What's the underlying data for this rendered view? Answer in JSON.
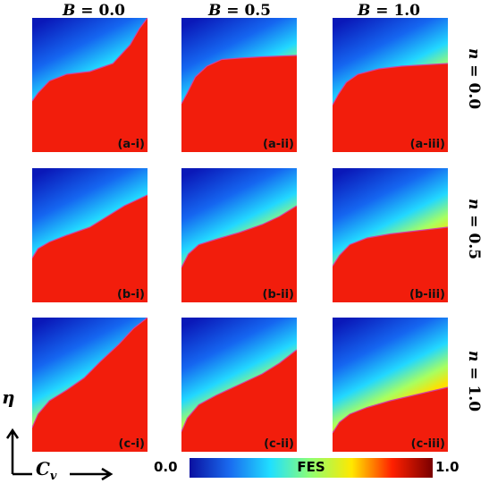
{
  "columns": [
    {
      "var": "B",
      "value": "0.0"
    },
    {
      "var": "B",
      "value": "0.5"
    },
    {
      "var": "B",
      "value": "1.0"
    }
  ],
  "rows": [
    {
      "var": "n",
      "value": "0.0"
    },
    {
      "var": "n",
      "value": "0.5"
    },
    {
      "var": "n",
      "value": "1.0"
    }
  ],
  "panels": [
    {
      "label": "(a-i)"
    },
    {
      "label": "(a-ii)"
    },
    {
      "label": "(a-iii)"
    },
    {
      "label": "(b-i)"
    },
    {
      "label": "(b-ii)"
    },
    {
      "label": "(b-iii)"
    },
    {
      "label": "(c-i)"
    },
    {
      "label": "(c-ii)"
    },
    {
      "label": "(c-iii)"
    }
  ],
  "axes": {
    "x_var": "C",
    "x_sub": "v",
    "y_var": "η"
  },
  "colorbar": {
    "title": "FES",
    "min": "0.0",
    "max": "1.0",
    "colors": [
      "#0a10a0",
      "#1a6cf0",
      "#20e0ff",
      "#90ff70",
      "#ffe800",
      "#ff2000",
      "#7a0000"
    ]
  },
  "chart_data": {
    "type": "heatmap",
    "grid": "3x3 small multiples",
    "columns_param": "B",
    "columns_values": [
      0.0,
      0.5,
      1.0
    ],
    "rows_param": "n",
    "rows_values": [
      0.0,
      0.5,
      1.0
    ],
    "xlabel": "C_v",
    "ylabel": "η",
    "colorbar": {
      "label": "FES",
      "range": [
        0.0,
        1.0
      ]
    },
    "boundary_curves": [
      [
        [
          0.0,
          0.38
        ],
        [
          0.05,
          0.44
        ],
        [
          0.15,
          0.53
        ],
        [
          0.3,
          0.58
        ],
        [
          0.5,
          0.6
        ],
        [
          0.7,
          0.66
        ],
        [
          0.85,
          0.8
        ],
        [
          0.93,
          0.92
        ],
        [
          1.0,
          1.0
        ]
      ],
      [
        [
          0.0,
          0.36
        ],
        [
          0.05,
          0.44
        ],
        [
          0.12,
          0.56
        ],
        [
          0.22,
          0.64
        ],
        [
          0.35,
          0.69
        ],
        [
          0.5,
          0.7
        ],
        [
          0.7,
          0.71
        ],
        [
          1.0,
          0.72
        ]
      ],
      [
        [
          0.0,
          0.35
        ],
        [
          0.05,
          0.43
        ],
        [
          0.12,
          0.52
        ],
        [
          0.22,
          0.58
        ],
        [
          0.4,
          0.62
        ],
        [
          0.6,
          0.64
        ],
        [
          0.8,
          0.65
        ],
        [
          1.0,
          0.66
        ]
      ],
      [
        [
          0.0,
          0.33
        ],
        [
          0.05,
          0.4
        ],
        [
          0.15,
          0.45
        ],
        [
          0.3,
          0.5
        ],
        [
          0.5,
          0.56
        ],
        [
          0.65,
          0.64
        ],
        [
          0.8,
          0.72
        ],
        [
          1.0,
          0.8
        ]
      ],
      [
        [
          0.0,
          0.26
        ],
        [
          0.06,
          0.36
        ],
        [
          0.15,
          0.43
        ],
        [
          0.3,
          0.47
        ],
        [
          0.5,
          0.52
        ],
        [
          0.7,
          0.58
        ],
        [
          0.85,
          0.64
        ],
        [
          1.0,
          0.72
        ]
      ],
      [
        [
          0.0,
          0.27
        ],
        [
          0.06,
          0.35
        ],
        [
          0.15,
          0.43
        ],
        [
          0.3,
          0.48
        ],
        [
          0.5,
          0.51
        ],
        [
          0.7,
          0.53
        ],
        [
          1.0,
          0.56
        ]
      ],
      [
        [
          0.0,
          0.18
        ],
        [
          0.05,
          0.28
        ],
        [
          0.15,
          0.38
        ],
        [
          0.3,
          0.46
        ],
        [
          0.45,
          0.55
        ],
        [
          0.6,
          0.68
        ],
        [
          0.75,
          0.8
        ],
        [
          0.88,
          0.92
        ],
        [
          1.0,
          1.0
        ]
      ],
      [
        [
          0.0,
          0.15
        ],
        [
          0.05,
          0.25
        ],
        [
          0.15,
          0.35
        ],
        [
          0.3,
          0.42
        ],
        [
          0.5,
          0.5
        ],
        [
          0.7,
          0.58
        ],
        [
          0.85,
          0.66
        ],
        [
          1.0,
          0.76
        ]
      ],
      [
        [
          0.0,
          0.14
        ],
        [
          0.06,
          0.22
        ],
        [
          0.15,
          0.28
        ],
        [
          0.3,
          0.33
        ],
        [
          0.5,
          0.38
        ],
        [
          0.7,
          0.42
        ],
        [
          0.85,
          0.45
        ],
        [
          1.0,
          0.48
        ]
      ]
    ]
  }
}
